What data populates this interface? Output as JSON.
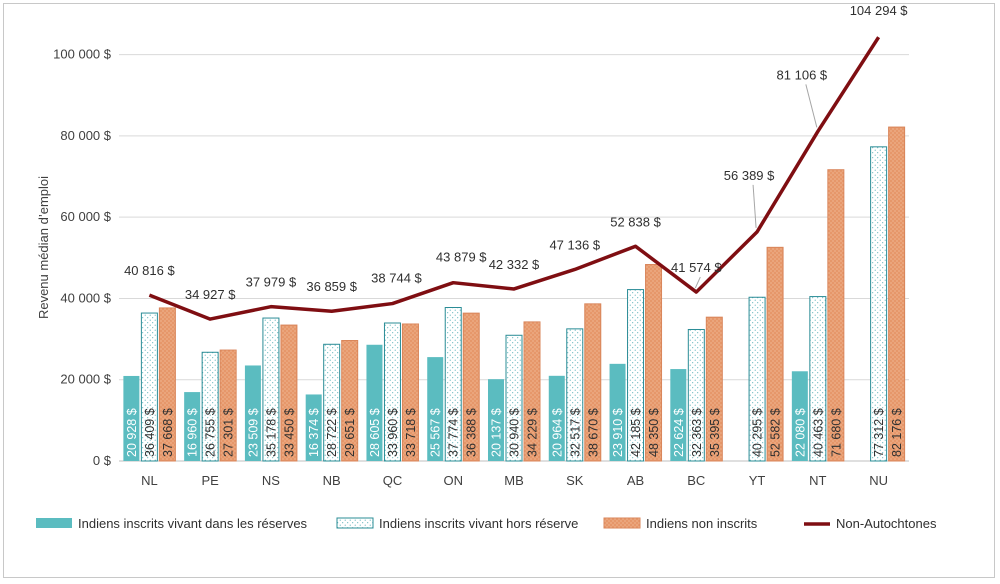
{
  "chart_data": {
    "type": "bar",
    "ylabel": "Revenu médian d’emploi",
    "ylim": [
      0,
      110000
    ],
    "yticks": [
      0,
      20000,
      40000,
      60000,
      80000,
      100000
    ],
    "ytick_labels": [
      "0 $",
      "20 000 $",
      "40 000 $",
      "60 000 $",
      "80 000 $",
      "100 000 $"
    ],
    "grid": true,
    "legend_position": "bottom",
    "categories": [
      "NL",
      "PE",
      "NS",
      "NB",
      "QC",
      "ON",
      "MB",
      "SK",
      "AB",
      "BC",
      "YT",
      "NT",
      "NU"
    ],
    "series": [
      {
        "name": "Indiens inscrits vivant dans les réserves",
        "kind": "bar",
        "color": "#5bbcc0",
        "values": [
          20928,
          16960,
          23509,
          16374,
          28605,
          25567,
          20137,
          20964,
          23910,
          22624,
          null,
          22080,
          null
        ],
        "labels": [
          "20 928 $",
          "16 960 $",
          "23 509 $",
          "16 374 $",
          "28 605 $",
          "25 567 $",
          "20 137 $",
          "20 964 $",
          "23 910 $",
          "22 624 $",
          "",
          "22 080 $",
          ""
        ]
      },
      {
        "name": "Indiens inscrits vivant hors réserve",
        "kind": "bar",
        "color": "#2a8c96",
        "values": [
          36409,
          26755,
          35178,
          28722,
          33960,
          37774,
          30940,
          32517,
          42185,
          32363,
          40295,
          40463,
          77312
        ],
        "labels": [
          "36 409 $",
          "26 755 $",
          "35 178 $",
          "28 722 $",
          "33 960 $",
          "37 774 $",
          "30 940 $",
          "32 517 $",
          "42 185 $",
          "32 363 $",
          "40 295 $",
          "40 463 $",
          "77 312 $"
        ]
      },
      {
        "name": "Indiens non inscrits",
        "kind": "bar",
        "color": "#e89c6c",
        "values": [
          37668,
          27301,
          33450,
          29651,
          33718,
          36388,
          34229,
          38670,
          48350,
          35395,
          52582,
          71680,
          82176
        ],
        "labels": [
          "37 668 $",
          "27 301 $",
          "33 450 $",
          "29 651 $",
          "33 718 $",
          "36 388 $",
          "34 229 $",
          "38 670 $",
          "48 350 $",
          "35 395 $",
          "52 582 $",
          "71 680 $",
          "82 176 $"
        ]
      },
      {
        "name": "Non-Autochtones",
        "kind": "line",
        "color": "#7f0e12",
        "values": [
          40816,
          34927,
          37979,
          36859,
          38744,
          43879,
          42332,
          47136,
          52838,
          41574,
          56389,
          81106,
          104294
        ],
        "labels": [
          "40 816 $",
          "34 927 $",
          "37 979 $",
          "36 859 $",
          "38 744 $",
          "43 879 $",
          "42 332 $",
          "47 136 $",
          "52 838 $",
          "41 574 $",
          "56 389 $",
          "81 106 $",
          "104 294 $"
        ]
      }
    ]
  }
}
